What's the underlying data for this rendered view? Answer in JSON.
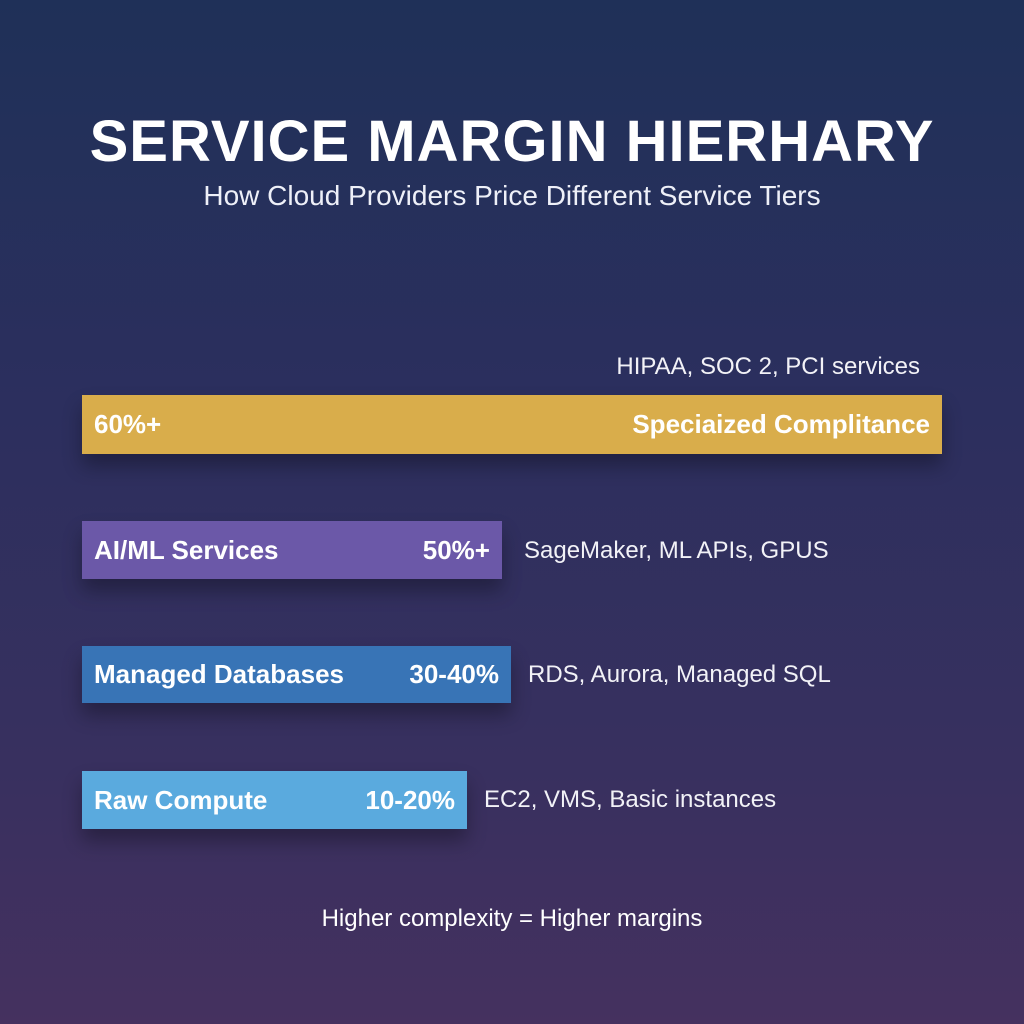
{
  "chart_data": {
    "type": "bar",
    "title": "SERVICE MARGIN HIERHARY",
    "subtitle": "How Cloud Providers Price Different Service Tiers",
    "orientation": "horizontal",
    "bars": [
      {
        "category": "Speciaized Complitance",
        "value_label": "60%+",
        "margin_min": 60,
        "examples": "HIPAA, SOC 2, PCI services",
        "color": "#d9ad4b"
      },
      {
        "category": "AI/ML Services",
        "value_label": "50%+",
        "margin_min": 50,
        "examples": "SageMaker, ML APIs, GPUS",
        "color": "#6b58a8"
      },
      {
        "category": "Managed Databases",
        "value_label": "30-40%",
        "margin_min": 30,
        "margin_max": 40,
        "examples": "RDS, Aurora, Managed SQL",
        "color": "#3874b6"
      },
      {
        "category": "Raw Compute",
        "value_label": "10-20%",
        "margin_min": 10,
        "margin_max": 20,
        "examples": "EC2, VMS, Basic instances",
        "color": "#5aaade"
      }
    ],
    "footnote": "Higher complexity = Higher margins",
    "grid": false
  }
}
